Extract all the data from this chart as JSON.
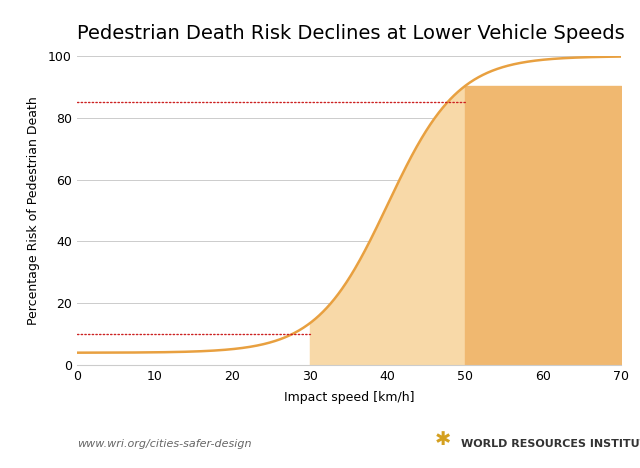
{
  "title": "Pedestrian Death Risk Declines at Lower Vehicle Speeds",
  "xlabel": "Impact speed [km/h]",
  "ylabel": "Percentage Risk of Pedestrian Death",
  "xlim": [
    0,
    70
  ],
  "ylim": [
    0,
    100
  ],
  "xticks": [
    0,
    10,
    20,
    30,
    40,
    50,
    60,
    70
  ],
  "yticks": [
    0,
    20,
    40,
    60,
    80,
    100
  ],
  "curve_color": "#E8A040",
  "fill_light_color": "#F8D9A8",
  "fill_dark_color": "#F0B870",
  "dotted_line_high_y": 85,
  "dotted_line_low_y": 10,
  "dotted_line_color": "#CC2222",
  "speed_30": 30,
  "speed_50": 50,
  "footer_left": "www.wri.org/cities-safer-design",
  "footer_right": "WORLD RESOURCES INSTITUTE",
  "background_color": "#FFFFFF",
  "grid_color": "#CCCCCC",
  "sigmoid_k": 0.22,
  "sigmoid_x0": 40,
  "sigmoid_baseline": 4,
  "title_fontsize": 14,
  "axis_label_fontsize": 9,
  "tick_fontsize": 9,
  "footer_fontsize": 8
}
